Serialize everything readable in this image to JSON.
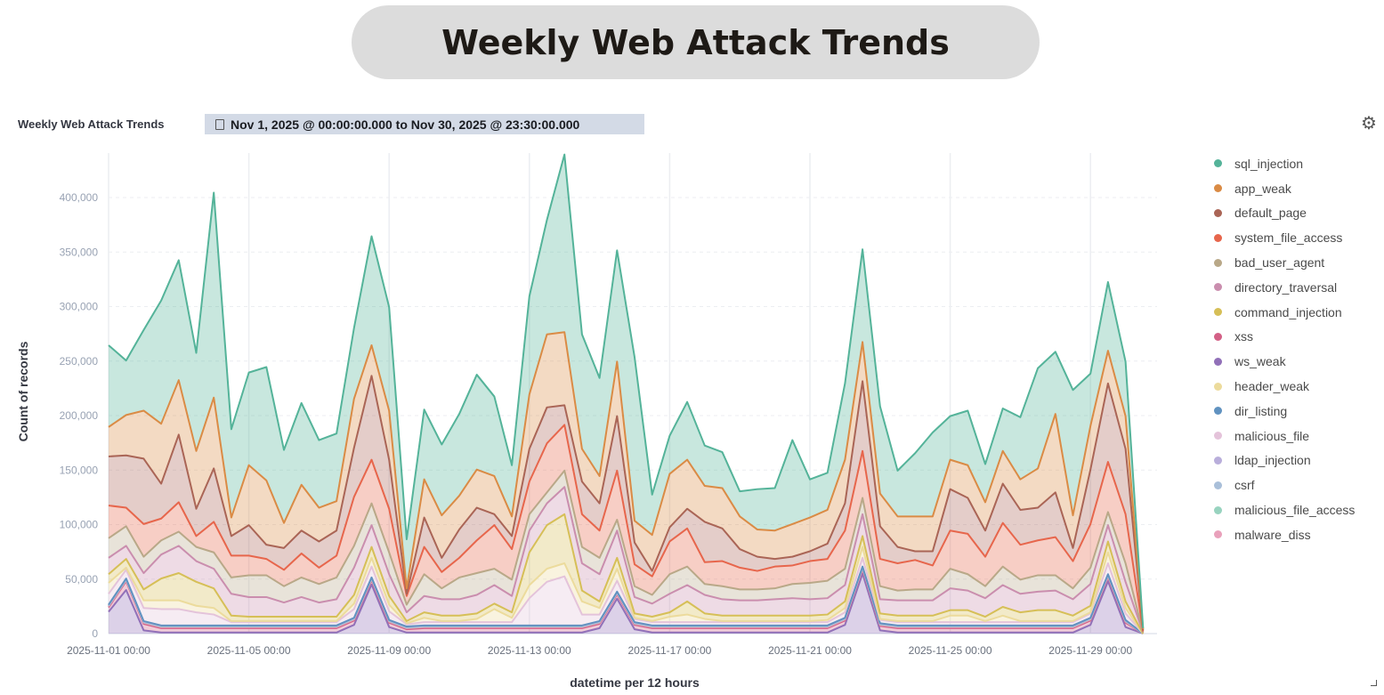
{
  "page_title": "Weekly Web Attack Trends",
  "panel": {
    "title": "Weekly Web Attack Trends",
    "date_range": "Nov 1, 2025 @ 00:00:00.000 to Nov 30, 2025 @ 23:30:00.000",
    "icons": {
      "calendar": "calendar-icon",
      "settings": "gear-icon"
    }
  },
  "chart_data": {
    "type": "area",
    "stacked": true,
    "title": "Weekly Web Attack Trends",
    "xlabel": "datetime per 12 hours",
    "ylabel": "Count of records",
    "x_start": "2025-11-01 00:00",
    "x_interval": "12h",
    "x_ticks": [
      "2025-11-01 00:00",
      "2025-11-05 00:00",
      "2025-11-09 00:00",
      "2025-11-13 00:00",
      "2025-11-17 00:00",
      "2025-11-21 00:00",
      "2025-11-25 00:00",
      "2025-11-29 00:00"
    ],
    "y_ticks": [
      "0",
      "50,000",
      "100,000",
      "150,000",
      "200,000",
      "250,000",
      "300,000",
      "350,000",
      "400,000"
    ],
    "ylim": [
      0,
      450000
    ],
    "grid": true,
    "legend_position": "right",
    "stack_order": [
      "ws_weak",
      "xss",
      "malware_diss",
      "malicious_file_access",
      "csrf",
      "ldap_injection",
      "dir_listing",
      "malicious_file",
      "header_weak",
      "command_injection",
      "directory_traversal",
      "bad_user_agent",
      "system_file_access",
      "default_page",
      "app_weak",
      "sql_injection"
    ],
    "series": [
      {
        "name": "sql_injection",
        "color": "#54b399",
        "values": [
          75000,
          50000,
          74000,
          113000,
          110000,
          90000,
          188000,
          81000,
          85000,
          104000,
          67000,
          75000,
          62000,
          62000,
          65000,
          100000,
          95000,
          45000,
          64000,
          65000,
          75000,
          87000,
          73000,
          47000,
          90000,
          105000,
          163000,
          105000,
          90000,
          102000,
          150000,
          37000,
          35000,
          53000,
          37000,
          33000,
          23000,
          37000,
          39000,
          77000,
          35000,
          34000,
          70000,
          85000,
          80000,
          42000,
          58000,
          77000,
          40000,
          50000,
          35000,
          39000,
          57000,
          92000,
          57000,
          115000,
          48000,
          63000,
          50000,
          1000
        ]
      },
      {
        "name": "app_weak",
        "color": "#da8b45",
        "values": [
          27000,
          37000,
          44000,
          55000,
          50000,
          53000,
          65000,
          17000,
          55000,
          59000,
          23000,
          42000,
          31000,
          27000,
          45000,
          28000,
          45000,
          5000,
          35000,
          39000,
          31000,
          35000,
          35000,
          18000,
          50000,
          67000,
          67000,
          30000,
          25000,
          50000,
          20000,
          33000,
          49000,
          45000,
          33000,
          37000,
          30000,
          25000,
          26000,
          30000,
          31000,
          31000,
          40000,
          36000,
          30000,
          28000,
          32000,
          32000,
          27000,
          30000,
          26000,
          30000,
          28000,
          36000,
          72000,
          30000,
          40000,
          30000,
          30000,
          1000
        ]
      },
      {
        "name": "default_page",
        "color": "#aa6556",
        "values": [
          45000,
          48000,
          60000,
          32000,
          62000,
          25000,
          49000,
          18000,
          28000,
          13000,
          20000,
          21000,
          24000,
          23000,
          45000,
          77000,
          45000,
          2000,
          27000,
          13000,
          26000,
          30000,
          10000,
          12000,
          30000,
          33000,
          18000,
          30000,
          25000,
          50000,
          20000,
          5000,
          13000,
          18000,
          37000,
          30000,
          17000,
          13000,
          7000,
          8000,
          9000,
          14000,
          25000,
          64000,
          30000,
          15000,
          8000,
          13000,
          38000,
          33000,
          24000,
          36000,
          32000,
          30000,
          41000,
          12000,
          50000,
          72000,
          60000,
          1000
        ]
      },
      {
        "name": "system_file_access",
        "color": "#e7664c",
        "values": [
          30000,
          17000,
          30000,
          20000,
          27000,
          10000,
          28000,
          20000,
          18000,
          15000,
          15000,
          22000,
          15000,
          20000,
          45000,
          40000,
          40000,
          8000,
          25000,
          15000,
          18000,
          30000,
          40000,
          28000,
          30000,
          45000,
          42000,
          30000,
          25000,
          45000,
          20000,
          17000,
          30000,
          35000,
          20000,
          23000,
          20000,
          17000,
          20000,
          17000,
          20000,
          20000,
          35000,
          43000,
          25000,
          25000,
          27000,
          22000,
          35000,
          37000,
          27000,
          40000,
          32000,
          32000,
          35000,
          25000,
          40000,
          46000,
          45000,
          1000
        ]
      },
      {
        "name": "bad_user_agent",
        "color": "#b9a888",
        "values": [
          18000,
          18000,
          15000,
          13000,
          13000,
          13000,
          15000,
          15000,
          20000,
          20000,
          15000,
          18000,
          17000,
          20000,
          20000,
          20000,
          20000,
          7000,
          20000,
          10000,
          20000,
          20000,
          15000,
          15000,
          15000,
          10000,
          15000,
          15000,
          15000,
          10000,
          10000,
          8000,
          18000,
          17000,
          10000,
          12000,
          10000,
          10000,
          10000,
          13000,
          15000,
          16000,
          15000,
          15000,
          12000,
          9000,
          10000,
          10000,
          18000,
          15000,
          11000,
          17000,
          13000,
          15000,
          14000,
          10000,
          15000,
          12000,
          17000,
          0
        ]
      },
      {
        "name": "directory_traversal",
        "color": "#ca8eae",
        "values": [
          15000,
          12000,
          15000,
          22000,
          25000,
          19000,
          18000,
          20000,
          18000,
          18000,
          13000,
          18000,
          13000,
          16000,
          25000,
          20000,
          20000,
          8000,
          15000,
          15000,
          15000,
          17000,
          17000,
          15000,
          20000,
          20000,
          25000,
          25000,
          25000,
          25000,
          15000,
          12000,
          17000,
          15000,
          17000,
          15000,
          14000,
          14000,
          15000,
          16000,
          15000,
          15000,
          15000,
          20000,
          13000,
          14000,
          14000,
          14000,
          20000,
          18000,
          17000,
          20000,
          17000,
          17000,
          18000,
          15000,
          20000,
          15000,
          18000,
          1000
        ]
      },
      {
        "name": "command_injection",
        "color": "#d6bf57",
        "values": [
          8000,
          8000,
          10000,
          20000,
          25000,
          22000,
          18000,
          5000,
          4000,
          4000,
          4000,
          4000,
          4000,
          4000,
          8000,
          10000,
          8000,
          2000,
          5000,
          5000,
          5000,
          5000,
          5000,
          5000,
          30000,
          40000,
          45000,
          10000,
          6000,
          10000,
          4000,
          4000,
          4000,
          12000,
          5000,
          5000,
          5000,
          5000,
          5000,
          5000,
          5000,
          5000,
          6000,
          10000,
          5000,
          5000,
          5000,
          5000,
          5000,
          5000,
          4000,
          8000,
          8000,
          10000,
          10000,
          5000,
          6000,
          10000,
          6000,
          0
        ]
      },
      {
        "name": "xss",
        "color": "#d36086",
        "values": [
          4000,
          8000,
          6000,
          4000,
          4000,
          4000,
          4000,
          4000,
          4000,
          4000,
          4000,
          4000,
          4000,
          4000,
          4000,
          4000,
          4000,
          3000,
          4000,
          4000,
          4000,
          4000,
          4000,
          4000,
          4000,
          4000,
          4000,
          4000,
          4000,
          4000,
          4000,
          4000,
          4000,
          4000,
          4000,
          4000,
          4000,
          4000,
          4000,
          4000,
          4000,
          4000,
          4000,
          4000,
          4000,
          4000,
          4000,
          4000,
          4000,
          4000,
          4000,
          4000,
          4000,
          4000,
          4000,
          4000,
          4000,
          4000,
          4000,
          0
        ]
      },
      {
        "name": "ws_weak",
        "color": "#9170b8",
        "values": [
          20000,
          40000,
          3000,
          1000,
          1000,
          1000,
          1000,
          1000,
          1000,
          1000,
          1000,
          1000,
          1000,
          1000,
          8000,
          45000,
          6000,
          1000,
          1000,
          1000,
          1000,
          1000,
          1000,
          1000,
          1000,
          1000,
          1000,
          1000,
          5000,
          32000,
          4000,
          1000,
          1000,
          1000,
          1000,
          1000,
          1000,
          1000,
          1000,
          1000,
          1000,
          1000,
          8000,
          55000,
          3000,
          1000,
          1000,
          1000,
          1000,
          1000,
          1000,
          1000,
          1000,
          1000,
          1000,
          1000,
          8000,
          48000,
          6000,
          0
        ]
      },
      {
        "name": "header_weak",
        "color": "#ecdb9c",
        "values": [
          10000,
          2000,
          7000,
          8000,
          8000,
          6000,
          6000,
          1000,
          1000,
          1000,
          1000,
          1000,
          1000,
          1000,
          5000,
          8000,
          6000,
          1000,
          4000,
          1000,
          1000,
          3000,
          12000,
          4000,
          12000,
          12000,
          12000,
          12000,
          6000,
          11000,
          1000,
          1000,
          5000,
          7000,
          3000,
          1000,
          1000,
          1000,
          1000,
          1000,
          1000,
          2000,
          4000,
          10000,
          1000,
          1000,
          1000,
          1000,
          6000,
          6000,
          1000,
          6000,
          1000,
          1000,
          1000,
          1000,
          1000,
          10000,
          5000,
          0
        ]
      },
      {
        "name": "dir_listing",
        "color": "#6092c0",
        "values": [
          400,
          400,
          400,
          400,
          400,
          400,
          400,
          400,
          400,
          400,
          400,
          400,
          400,
          400,
          400,
          400,
          400,
          400,
          400,
          400,
          400,
          400,
          400,
          400,
          400,
          400,
          400,
          400,
          400,
          400,
          400,
          400,
          400,
          400,
          400,
          400,
          400,
          400,
          400,
          400,
          400,
          400,
          400,
          400,
          400,
          400,
          400,
          400,
          400,
          400,
          400,
          400,
          400,
          400,
          400,
          400,
          400,
          400,
          400,
          0
        ]
      },
      {
        "name": "malicious_file",
        "color": "#e4c3da",
        "values": [
          10000,
          8000,
          12000,
          15000,
          15000,
          12000,
          10000,
          3000,
          3000,
          3000,
          3000,
          3000,
          3000,
          3000,
          8000,
          10000,
          8000,
          2000,
          3000,
          3000,
          3000,
          3000,
          3000,
          3000,
          25000,
          40000,
          45000,
          10000,
          6000,
          10000,
          3000,
          3000,
          3000,
          3000,
          3000,
          3000,
          3000,
          3000,
          3000,
          3000,
          3000,
          3000,
          5000,
          8000,
          3000,
          3000,
          3000,
          3000,
          3000,
          3000,
          3000,
          3000,
          3000,
          3000,
          3000,
          3000,
          4000,
          10000,
          6000,
          0
        ]
      },
      {
        "name": "ldap_injection",
        "color": "#b9aedb",
        "values": [
          300,
          300,
          300,
          300,
          300,
          300,
          300,
          300,
          300,
          300,
          300,
          300,
          300,
          300,
          300,
          300,
          300,
          300,
          300,
          300,
          300,
          300,
          300,
          300,
          300,
          300,
          300,
          300,
          300,
          300,
          300,
          300,
          300,
          300,
          300,
          300,
          300,
          300,
          300,
          300,
          300,
          300,
          300,
          300,
          300,
          300,
          300,
          300,
          300,
          300,
          300,
          300,
          300,
          300,
          300,
          300,
          300,
          300,
          300,
          0
        ]
      },
      {
        "name": "csrf",
        "color": "#a9bfd9",
        "values": [
          300,
          300,
          300,
          300,
          300,
          300,
          300,
          300,
          300,
          300,
          300,
          300,
          300,
          300,
          300,
          300,
          300,
          300,
          300,
          300,
          300,
          300,
          300,
          300,
          300,
          300,
          300,
          300,
          300,
          300,
          300,
          300,
          300,
          300,
          300,
          300,
          300,
          300,
          300,
          300,
          300,
          300,
          300,
          300,
          300,
          300,
          300,
          300,
          300,
          300,
          300,
          300,
          300,
          300,
          300,
          300,
          300,
          300,
          300,
          0
        ]
      },
      {
        "name": "malicious_file_access",
        "color": "#98d3bf",
        "values": [
          500,
          500,
          500,
          500,
          500,
          500,
          500,
          500,
          500,
          500,
          500,
          500,
          500,
          500,
          500,
          500,
          500,
          500,
          500,
          500,
          500,
          500,
          500,
          500,
          500,
          500,
          500,
          500,
          500,
          500,
          500,
          500,
          500,
          500,
          500,
          500,
          500,
          500,
          500,
          500,
          500,
          500,
          500,
          500,
          500,
          500,
          500,
          500,
          500,
          500,
          500,
          500,
          500,
          500,
          500,
          500,
          500,
          500,
          500,
          0
        ]
      },
      {
        "name": "malware_diss",
        "color": "#e9a1bb",
        "values": [
          1000,
          1000,
          1000,
          1000,
          1000,
          1000,
          1000,
          1000,
          1000,
          1000,
          1000,
          1000,
          1000,
          1000,
          1000,
          1000,
          1000,
          1000,
          1000,
          1000,
          1000,
          1000,
          1000,
          1000,
          1000,
          1000,
          1000,
          1000,
          1000,
          1000,
          1000,
          1000,
          1000,
          1000,
          1000,
          1000,
          1000,
          1000,
          1000,
          1000,
          1000,
          1000,
          1000,
          1000,
          1000,
          1000,
          1000,
          1000,
          1000,
          1000,
          1000,
          1000,
          1000,
          1000,
          1000,
          1000,
          1000,
          1000,
          1000,
          0
        ]
      }
    ]
  }
}
